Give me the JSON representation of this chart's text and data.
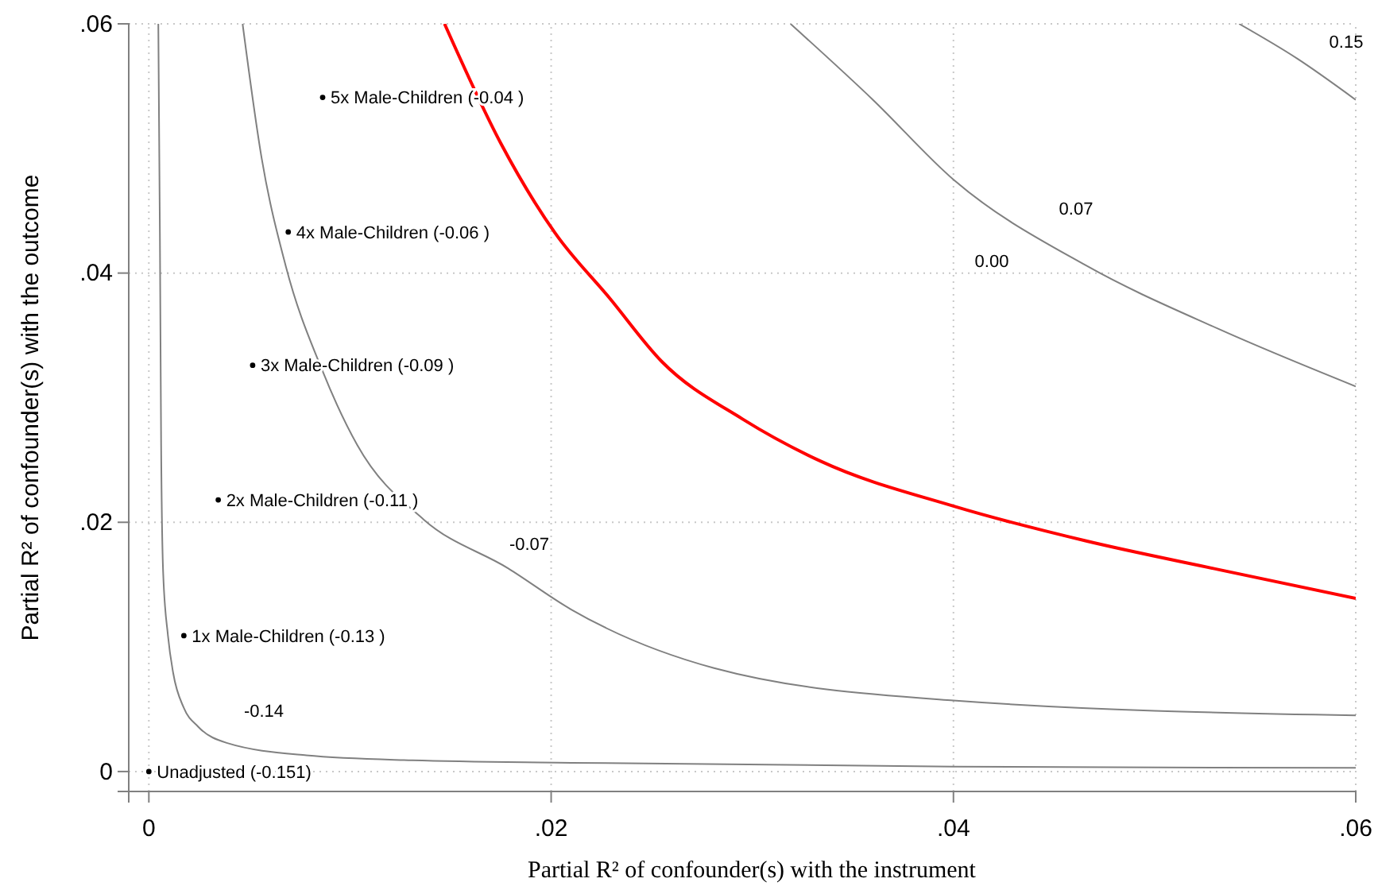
{
  "chart_data": {
    "type": "line",
    "xlabel": "Partial R² of confounder(s) with the instrument",
    "ylabel": "Partial R² of confounder(s) with the outcome",
    "xlim": [
      -0.001,
      0.06
    ],
    "ylim": [
      -0.0016,
      0.06
    ],
    "xticks": [
      {
        "value": 0,
        "label": "0"
      },
      {
        "value": 0.02,
        "label": ".02"
      },
      {
        "value": 0.04,
        "label": ".04"
      },
      {
        "value": 0.06,
        "label": ".06"
      }
    ],
    "yticks": [
      {
        "value": 0,
        "label": "0"
      },
      {
        "value": 0.02,
        "label": ".02"
      },
      {
        "value": 0.04,
        "label": ".04"
      },
      {
        "value": 0.06,
        "label": ".06"
      }
    ],
    "grid": true,
    "line_style": "solid",
    "series": [
      {
        "color": "#808080",
        "x": [
          0.00047,
          0.00055,
          0.00061,
          0.00071,
          0.00095,
          0.00121,
          0.00174,
          0.00245,
          0.00387,
          0.00783,
          0.0131,
          0.021,
          0.04,
          0.06
        ],
        "values": [
          0.06,
          0.0428,
          0.0262,
          0.016,
          0.0109,
          0.0079,
          0.0051,
          0.0036,
          0.0023,
          0.0013,
          0.0009,
          0.0007,
          0.0004,
          0.0003
        ]
      },
      {
        "color": "#808080",
        "x": [
          0.00466,
          0.00561,
          0.0068,
          0.00862,
          0.01036,
          0.01368,
          0.01787,
          0.021,
          0.0281,
          0.04,
          0.06
        ],
        "values": [
          0.06,
          0.0492,
          0.0406,
          0.0322,
          0.0262,
          0.0202,
          0.0163,
          0.013,
          0.0083,
          0.0057,
          0.0045
        ]
      },
      {
        "color": "#ff0000",
        "x": [
          0.0147,
          0.0175,
          0.0202,
          0.0229,
          0.0255,
          0.0295,
          0.0334,
          0.04,
          0.0466,
          0.0532,
          0.06
        ],
        "values": [
          0.06,
          0.0504,
          0.0432,
          0.038,
          0.0329,
          0.0283,
          0.0249,
          0.0213,
          0.0185,
          0.0162,
          0.0139
        ]
      },
      {
        "color": "#808080",
        "x": [
          0.0319,
          0.036,
          0.04,
          0.0466,
          0.0532,
          0.06
        ],
        "values": [
          0.06,
          0.0539,
          0.0475,
          0.0406,
          0.0355,
          0.0309
        ]
      },
      {
        "color": "#808080",
        "x": [
          0.0542,
          0.0571,
          0.06
        ],
        "values": [
          0.06,
          0.0572,
          0.0539
        ]
      },
      {
        "type": "scatter",
        "color": "#000000",
        "marker": "circle",
        "x": [
          0,
          0.00174,
          0.00345,
          0.00516,
          0.00693,
          0.00864
        ],
        "values": [
          0,
          0.0109,
          0.0218,
          0.0326,
          0.0433,
          0.0541
        ]
      }
    ],
    "annotations": [
      "-0.14",
      "-0.07",
      "0.00",
      "0.07",
      "0.15",
      {
        "text": "Unadjusted (-0.151)",
        "x": 0,
        "y": 0
      },
      {
        "text": "1x Male-Children (-0.13 )",
        "x": 0.00174,
        "y": 0.0109
      },
      {
        "text": "2x Male-Children (-0.11 )",
        "x": 0.00345,
        "y": 0.0218
      },
      {
        "text": "3x Male-Children (-0.09 )",
        "x": 0.00516,
        "y": 0.0326
      },
      {
        "text": "4x Male-Children (-0.06 )",
        "x": 0.00693,
        "y": 0.0433
      },
      {
        "text": "5x Male-Children (-0.04 )",
        "x": 0.00864,
        "y": 0.0541
      }
    ]
  }
}
